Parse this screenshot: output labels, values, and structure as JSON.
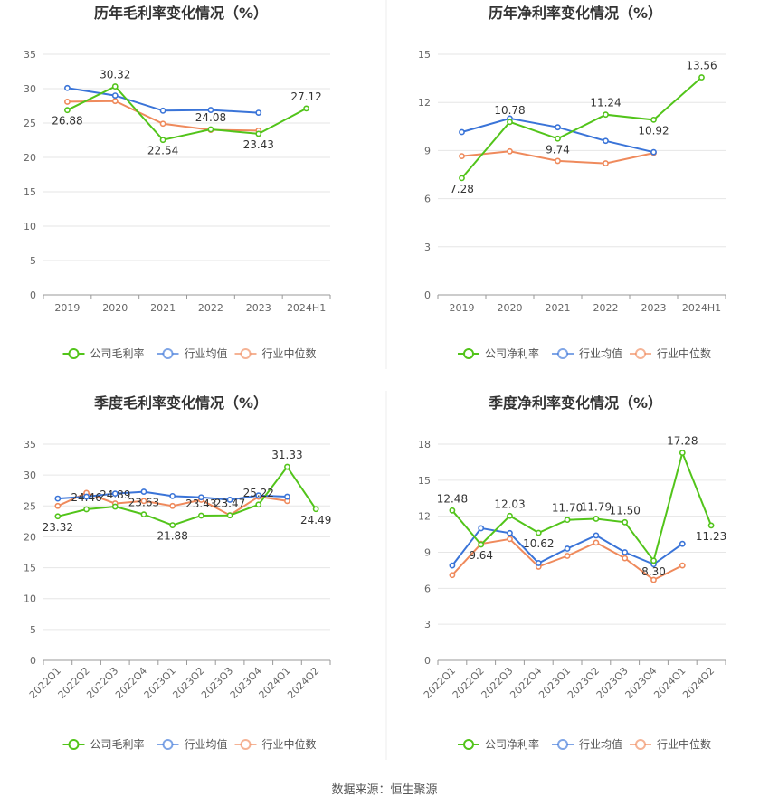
{
  "footer": {
    "source": "数据来源：恒生聚源"
  },
  "colors": {
    "company": "#52c41a",
    "industry_avg": "#3a74d8",
    "industry_median": "#ef8a5c",
    "grid": "#e6e6e6",
    "axis_text": "#666666",
    "title": "#333333"
  },
  "chart_data": [
    {
      "id": "annual-gross",
      "type": "line",
      "title": "历年毛利率变化情况（%）",
      "categories": [
        "2019",
        "2020",
        "2021",
        "2022",
        "2023",
        "2024H1"
      ],
      "ylim": [
        0,
        35
      ],
      "yticks": [
        0,
        5,
        10,
        15,
        20,
        25,
        30,
        35
      ],
      "grid": true,
      "legend_position": "bottom",
      "series": [
        {
          "name": "公司毛利率",
          "role": "company",
          "values": [
            26.88,
            30.32,
            22.54,
            24.08,
            23.43,
            27.12
          ],
          "labels": [
            "26.88",
            "30.32",
            "22.54",
            "24.08",
            "23.43",
            "27.12"
          ]
        },
        {
          "name": "行业均值",
          "role": "industry_avg",
          "values": [
            30.1,
            29.0,
            26.8,
            26.9,
            26.5,
            null
          ]
        },
        {
          "name": "行业中位数",
          "role": "industry_median",
          "values": [
            28.1,
            28.2,
            24.9,
            24.0,
            23.9,
            null
          ]
        }
      ]
    },
    {
      "id": "annual-net",
      "type": "line",
      "title": "历年净利率变化情况（%）",
      "categories": [
        "2019",
        "2020",
        "2021",
        "2022",
        "2023",
        "2024H1"
      ],
      "ylim": [
        0,
        15
      ],
      "yticks": [
        0,
        3,
        6,
        9,
        12,
        15
      ],
      "grid": true,
      "legend_position": "bottom",
      "series": [
        {
          "name": "公司净利率",
          "role": "company",
          "values": [
            7.28,
            10.78,
            9.74,
            11.24,
            10.92,
            13.56
          ],
          "labels": [
            "7.28",
            "10.78",
            "9.74",
            "11.24",
            "10.92",
            "13.56"
          ]
        },
        {
          "name": "行业均值",
          "role": "industry_avg",
          "values": [
            10.15,
            11.0,
            10.45,
            9.6,
            8.9,
            null
          ]
        },
        {
          "name": "行业中位数",
          "role": "industry_median",
          "values": [
            8.65,
            8.95,
            8.35,
            8.2,
            8.85,
            null
          ]
        }
      ]
    },
    {
      "id": "quarterly-gross",
      "type": "line",
      "title": "季度毛利率变化情况（%）",
      "categories": [
        "2022Q1",
        "2022Q2",
        "2022Q3",
        "2022Q4",
        "2023Q1",
        "2023Q2",
        "2023Q3",
        "2023Q4",
        "2024Q1",
        "2024Q2"
      ],
      "ylim": [
        0,
        35
      ],
      "yticks": [
        0,
        5,
        10,
        15,
        20,
        25,
        30,
        35
      ],
      "grid": true,
      "legend_position": "bottom",
      "series": [
        {
          "name": "公司毛利率",
          "role": "company",
          "values": [
            23.32,
            24.46,
            24.89,
            23.63,
            21.88,
            23.43,
            23.47,
            25.22,
            31.33,
            24.49
          ],
          "labels": [
            "23.32",
            "24.46",
            "24.89",
            "23.63",
            "21.88",
            "23.43",
            "23.47",
            "25.22",
            "31.33",
            "24.49"
          ]
        },
        {
          "name": "行业均值",
          "role": "industry_avg",
          "values": [
            26.2,
            26.5,
            27.0,
            27.3,
            26.6,
            26.4,
            26.0,
            26.7,
            26.5,
            null
          ]
        },
        {
          "name": "行业中位数",
          "role": "industry_median",
          "values": [
            25.0,
            27.1,
            25.4,
            25.8,
            25.0,
            26.0,
            23.5,
            26.5,
            25.8,
            null
          ]
        }
      ]
    },
    {
      "id": "quarterly-net",
      "type": "line",
      "title": "季度净利率变化情况（%）",
      "categories": [
        "2022Q1",
        "2022Q2",
        "2022Q3",
        "2022Q4",
        "2023Q1",
        "2023Q2",
        "2023Q3",
        "2023Q4",
        "2024Q1",
        "2024Q2"
      ],
      "ylim": [
        0,
        18
      ],
      "yticks": [
        0,
        3,
        6,
        9,
        12,
        15,
        18
      ],
      "grid": true,
      "legend_position": "bottom",
      "series": [
        {
          "name": "公司净利率",
          "role": "company",
          "values": [
            12.48,
            9.64,
            12.03,
            10.62,
            11.7,
            11.79,
            11.5,
            8.3,
            17.28,
            11.23
          ],
          "labels": [
            "12.48",
            "9.64",
            "12.03",
            "10.62",
            "11.70",
            "11.79",
            "11.50",
            "8.30",
            "17.28",
            "11.23"
          ]
        },
        {
          "name": "行业均值",
          "role": "industry_avg",
          "values": [
            7.9,
            11.0,
            10.6,
            8.1,
            9.3,
            10.4,
            9.0,
            8.0,
            9.7,
            null
          ]
        },
        {
          "name": "行业中位数",
          "role": "industry_median",
          "values": [
            7.1,
            9.7,
            10.1,
            7.8,
            8.7,
            9.8,
            8.5,
            6.7,
            7.9,
            null
          ]
        }
      ]
    }
  ]
}
